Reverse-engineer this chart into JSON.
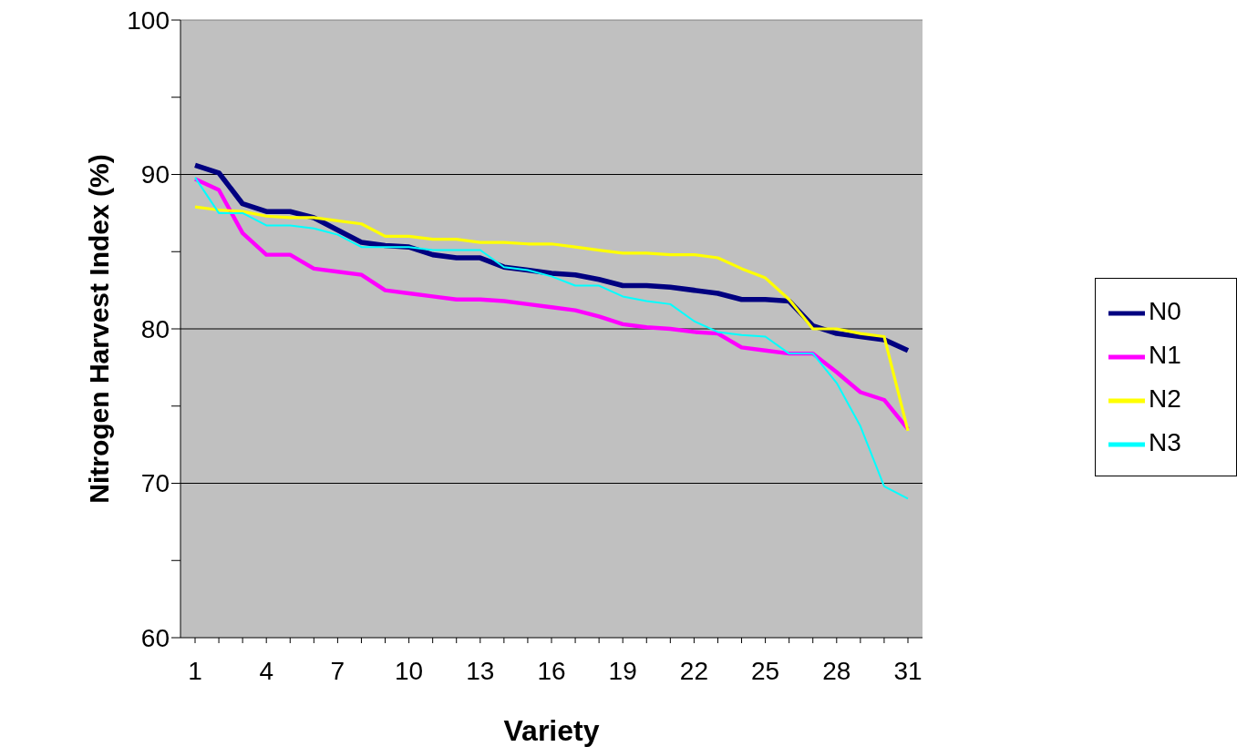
{
  "chart_data": {
    "type": "line",
    "xlabel": "Variety",
    "ylabel": "Nitrogen Harvest Index (%)",
    "categories": [
      "1",
      null,
      null,
      "4",
      null,
      null,
      "7",
      null,
      null,
      "10",
      null,
      null,
      "13",
      null,
      null,
      "16",
      null,
      null,
      "19",
      null,
      null,
      "22",
      null,
      null,
      "25",
      null,
      null,
      "28",
      null,
      null,
      "31"
    ],
    "ylim": [
      60,
      100
    ],
    "yticks": [
      60,
      {
        "value": 65,
        "label": null
      },
      70,
      {
        "value": 75,
        "label": null
      },
      80,
      {
        "value": 85,
        "label": null
      },
      90,
      {
        "value": 95,
        "label": null
      },
      100
    ],
    "grid": "y",
    "legend": "right",
    "marker": "none",
    "line_style": "solid",
    "series": [
      {
        "name": "N0",
        "color": "#000080",
        "values": [
          90.6,
          90.1,
          88.1,
          87.6,
          87.6,
          87.2,
          86.4,
          85.6,
          85.4,
          85.3,
          84.8,
          84.6,
          84.6,
          84.0,
          83.8,
          83.6,
          83.5,
          83.2,
          82.8,
          82.8,
          82.7,
          82.5,
          82.3,
          81.9,
          81.9,
          81.8,
          80.2,
          79.7,
          79.5,
          79.3,
          78.6
        ]
      },
      {
        "name": "N1",
        "color": "#ff00ff",
        "values": [
          89.7,
          89.0,
          86.2,
          84.8,
          84.8,
          83.9,
          83.7,
          83.5,
          82.5,
          82.3,
          82.1,
          81.9,
          81.9,
          81.8,
          81.6,
          81.4,
          81.2,
          80.8,
          80.3,
          80.1,
          80.0,
          79.8,
          79.7,
          78.8,
          78.6,
          78.4,
          78.4,
          77.2,
          75.9,
          75.4,
          73.5
        ]
      },
      {
        "name": "N2",
        "color": "#ffff00",
        "values": [
          87.9,
          87.7,
          87.6,
          87.3,
          87.2,
          87.2,
          87.0,
          86.8,
          86.0,
          86.0,
          85.8,
          85.8,
          85.6,
          85.6,
          85.5,
          85.5,
          85.3,
          85.1,
          84.9,
          84.9,
          84.8,
          84.8,
          84.6,
          83.9,
          83.3,
          81.9,
          80.0,
          80.0,
          79.7,
          79.5,
          73.4
        ]
      },
      {
        "name": "N3",
        "color": "#00ffff",
        "values": [
          89.8,
          87.5,
          87.5,
          86.7,
          86.7,
          86.5,
          86.1,
          85.3,
          85.3,
          85.3,
          85.1,
          85.1,
          85.1,
          84.0,
          83.8,
          83.4,
          82.8,
          82.8,
          82.1,
          81.8,
          81.6,
          80.5,
          79.8,
          79.6,
          79.5,
          78.4,
          78.4,
          76.5,
          73.7,
          69.8,
          69.0
        ]
      }
    ]
  }
}
